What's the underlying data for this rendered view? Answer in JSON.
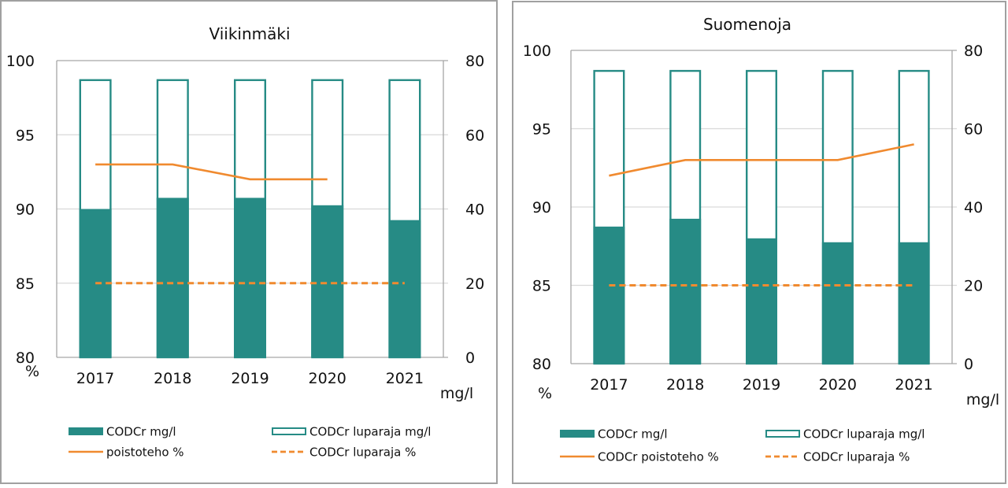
{
  "colors": {
    "teal": "#268B85",
    "orange": "#F08A2F",
    "grid": "#d9d9d9",
    "axis": "#a6a6a6"
  },
  "chart_data": [
    {
      "type": "bar",
      "title": "Viikinmäki",
      "categories": [
        "2017",
        "2018",
        "2019",
        "2020",
        "2021"
      ],
      "ylabel": "%",
      "y2label": "mg/l",
      "ylim": [
        80,
        100
      ],
      "yticks": [
        "80",
        "85",
        "90",
        "95",
        "100"
      ],
      "y2lim": [
        0,
        80
      ],
      "y2ticks": [
        "0",
        "20",
        "40",
        "60",
        "80"
      ],
      "grid": true,
      "legend_position": "bottom",
      "series": [
        {
          "name": "CODCr mg/l",
          "kind": "bar-filled",
          "axis": "right",
          "values": [
            40,
            43,
            43,
            41,
            37
          ]
        },
        {
          "name": "CODCr  luparaja mg/l",
          "kind": "bar-outline",
          "axis": "right",
          "values": [
            75,
            75,
            75,
            75,
            75
          ]
        },
        {
          "name": "poistoteho %",
          "kind": "line-solid",
          "axis": "left",
          "values": [
            93,
            93,
            92,
            92,
            null
          ]
        },
        {
          "name": "CODCr luparaja  %",
          "kind": "line-dashed",
          "axis": "left",
          "values": [
            85,
            85,
            85,
            85,
            85
          ]
        }
      ]
    },
    {
      "type": "bar",
      "title": "Suomenoja",
      "categories": [
        "2017",
        "2018",
        "2019",
        "2020",
        "2021"
      ],
      "ylabel": "%",
      "y2label": "mg/l",
      "ylim": [
        80,
        100
      ],
      "yticks": [
        "80",
        "85",
        "90",
        "95",
        "100"
      ],
      "y2lim": [
        0,
        80
      ],
      "y2ticks": [
        "0",
        "20",
        "40",
        "60",
        "80"
      ],
      "grid": true,
      "legend_position": "bottom",
      "series": [
        {
          "name": "CODCr mg/l",
          "kind": "bar-filled",
          "axis": "right",
          "values": [
            35,
            37,
            32,
            31,
            31
          ]
        },
        {
          "name": "CODCr luparaja  mg/l",
          "kind": "bar-outline",
          "axis": "right",
          "values": [
            75,
            75,
            75,
            75,
            75
          ]
        },
        {
          "name": "CODCr poistoteho %",
          "kind": "line-solid",
          "axis": "left",
          "values": [
            92,
            93,
            93,
            93,
            94
          ]
        },
        {
          "name": "CODCr luparaja %",
          "kind": "line-dashed",
          "axis": "left",
          "values": [
            85,
            85,
            85,
            85,
            85
          ]
        }
      ]
    }
  ]
}
